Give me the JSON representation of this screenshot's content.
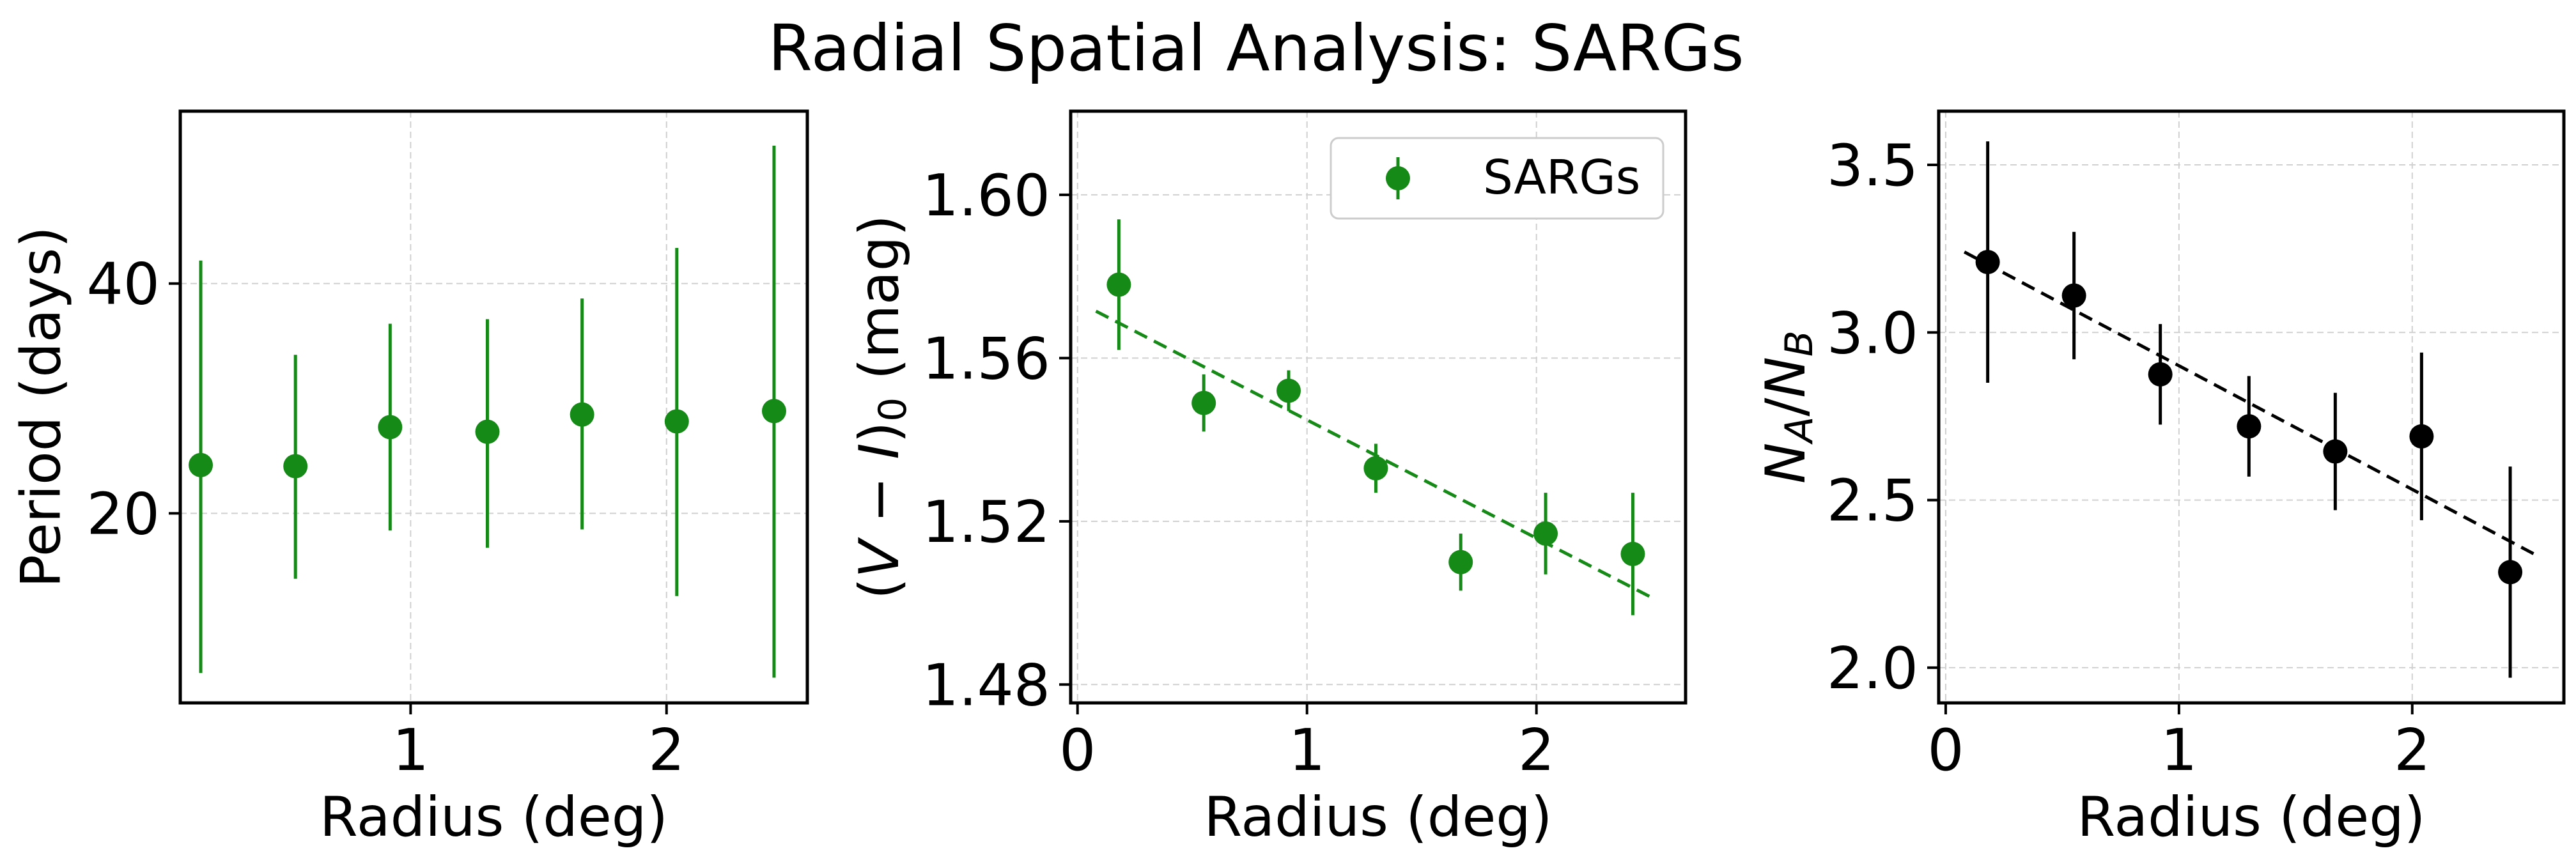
{
  "figure": {
    "title": "Radial Spatial Analysis: SARGs"
  },
  "chart_data": [
    {
      "type": "scatter",
      "title": "",
      "xlabel": "Radius (deg)",
      "ylabel": "Period (days)",
      "xlim": [
        0.1,
        2.55
      ],
      "ylim": [
        3.5,
        55
      ],
      "xticks": [
        1,
        2
      ],
      "xtick_labels": [
        "1",
        "2"
      ],
      "yticks": [
        20,
        40
      ],
      "ytick_labels": [
        "20",
        "40"
      ],
      "grid": true,
      "series": [
        {
          "color": "#168a16",
          "x": [
            0.18,
            0.55,
            0.92,
            1.3,
            1.67,
            2.04,
            2.42
          ],
          "y": [
            24.2,
            24.1,
            27.5,
            27.1,
            28.6,
            28.0,
            28.9
          ],
          "err_low": [
            18.1,
            9.8,
            9.0,
            10.1,
            10.0,
            15.2,
            23.2
          ],
          "err_high": [
            17.8,
            9.7,
            9.0,
            9.8,
            10.1,
            15.1,
            23.1
          ]
        }
      ]
    },
    {
      "type": "scatter",
      "title": "",
      "xlabel": "Radius (deg)",
      "ylabel_parts": [
        "(",
        "V",
        " − ",
        "I",
        ")",
        "0",
        " (mag)"
      ],
      "xlim": [
        -0.03,
        2.65
      ],
      "ylim": [
        1.4755,
        1.6205
      ],
      "xticks": [
        0,
        1,
        2
      ],
      "xtick_labels": [
        "0",
        "1",
        "2"
      ],
      "yticks": [
        1.48,
        1.52,
        1.56,
        1.6
      ],
      "ytick_labels": [
        "1.48",
        "1.52",
        "1.56",
        "1.60"
      ],
      "grid": true,
      "legend": {
        "placement": "top-right",
        "entries": [
          "SARGs"
        ]
      },
      "series": [
        {
          "name": "SARGs",
          "color": "#168a16",
          "x": [
            0.18,
            0.55,
            0.92,
            1.3,
            1.67,
            2.04,
            2.42
          ],
          "y": [
            1.578,
            1.549,
            1.552,
            1.533,
            1.51,
            1.517,
            1.512
          ],
          "err": [
            0.016,
            0.007,
            0.005,
            0.006,
            0.007,
            0.01,
            0.015
          ]
        }
      ],
      "fit_line": {
        "style": "dashed",
        "color": "#168a16",
        "x": [
          0.08,
          2.52
        ],
        "y": [
          1.5715,
          1.5008
        ]
      }
    },
    {
      "type": "scatter",
      "title": "",
      "xlabel": "Radius (deg)",
      "ylabel_parts": [
        "N",
        "A",
        "/",
        "N",
        "B"
      ],
      "xlim": [
        -0.03,
        2.65
      ],
      "ylim": [
        1.895,
        3.66
      ],
      "xticks": [
        0,
        1,
        2
      ],
      "xtick_labels": [
        "0",
        "1",
        "2"
      ],
      "yticks": [
        2.0,
        2.5,
        3.0,
        3.5
      ],
      "ytick_labels": [
        "2.0",
        "2.5",
        "3.0",
        "3.5"
      ],
      "grid": true,
      "series": [
        {
          "color": "#000000",
          "x": [
            0.18,
            0.55,
            0.92,
            1.3,
            1.67,
            2.04,
            2.42
          ],
          "y": [
            3.21,
            3.11,
            2.875,
            2.72,
            2.645,
            2.69,
            2.285
          ],
          "err": [
            0.36,
            0.19,
            0.15,
            0.15,
            0.175,
            0.25,
            0.315
          ]
        }
      ],
      "fit_line": {
        "style": "dashed",
        "color": "#000000",
        "x": [
          0.08,
          2.52
        ],
        "y": [
          3.24,
          2.34
        ]
      }
    }
  ]
}
